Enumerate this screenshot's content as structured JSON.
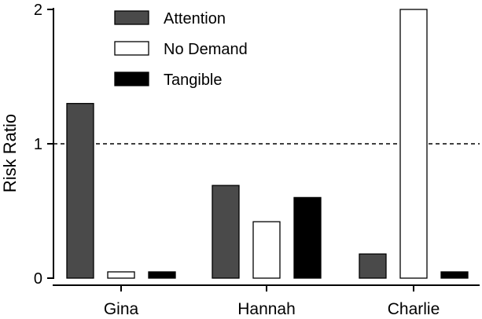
{
  "chart_data": {
    "type": "bar",
    "categories": [
      "Gina",
      "Hannah",
      "Charlie"
    ],
    "series": [
      {
        "name": "Attention",
        "values": [
          1.3,
          0.69,
          0.18
        ],
        "color": "#4a4a4a"
      },
      {
        "name": "No Demand",
        "values": [
          0.0,
          0.42,
          2.0
        ],
        "color": "#ffffff"
      },
      {
        "name": "Tangible",
        "values": [
          0.0,
          0.6,
          0.0
        ],
        "color": "#000000"
      }
    ],
    "title": "",
    "xlabel": "",
    "ylabel": "Risk Ratio",
    "ylim": [
      0,
      2
    ],
    "yticks": [
      0,
      1,
      2
    ],
    "reference_line": {
      "y": 1,
      "style": "dashed"
    },
    "grid": false,
    "legend_position": "top-left"
  }
}
